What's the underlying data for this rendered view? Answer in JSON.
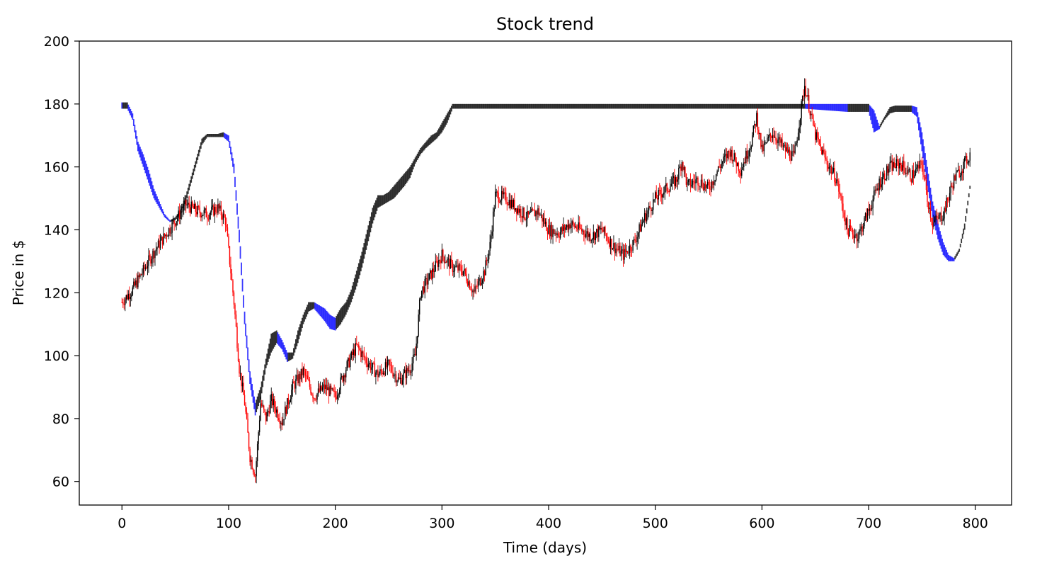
{
  "chart_data": {
    "type": "candlestick",
    "title": "Stock trend",
    "xlabel": "Time (days)",
    "ylabel": "Price in $",
    "xlim": [
      -40,
      834
    ],
    "ylim": [
      52.5,
      200
    ],
    "xticks": [
      0,
      100,
      200,
      300,
      400,
      500,
      600,
      700,
      800
    ],
    "yticks": [
      60,
      80,
      100,
      120,
      140,
      160,
      180,
      200
    ],
    "grid": false,
    "legend": "none",
    "colors": {
      "rise": "#000000",
      "fall": "#ff0000",
      "band_up": "#000000",
      "band_down": "#0000ff"
    },
    "series": [
      {
        "role": "price",
        "x": [
          0,
          10,
          20,
          30,
          40,
          50,
          60,
          70,
          80,
          90,
          97,
          105,
          110,
          115,
          120,
          125,
          130,
          135,
          140,
          150,
          160,
          170,
          180,
          190,
          200,
          210,
          220,
          230,
          240,
          250,
          260,
          270,
          275,
          280,
          290,
          300,
          310,
          320,
          330,
          340,
          345,
          350,
          360,
          370,
          380,
          390,
          400,
          410,
          420,
          430,
          440,
          450,
          460,
          470,
          480,
          490,
          500,
          510,
          520,
          525,
          530,
          540,
          550,
          560,
          570,
          580,
          590,
          595,
          600,
          610,
          620,
          630,
          640,
          645,
          650,
          660,
          670,
          680,
          685,
          690,
          700,
          710,
          720,
          730,
          740,
          750,
          755,
          760,
          770,
          780,
          790,
          795
        ],
        "y": [
          117,
          121,
          127,
          133,
          138,
          143,
          148,
          146,
          145,
          147,
          143,
          117,
          96,
          85,
          68,
          62,
          85,
          80,
          86,
          79,
          90,
          95,
          87,
          90,
          87,
          96,
          103,
          98,
          94,
          97,
          92,
          96,
          100,
          120,
          126,
          132,
          128,
          127,
          120,
          127,
          135,
          151,
          150,
          147,
          144,
          146,
          140,
          139,
          142,
          140,
          138,
          140,
          135,
          132,
          136,
          144,
          150,
          153,
          156,
          162,
          154,
          156,
          153,
          160,
          165,
          159,
          168,
          176,
          165,
          171,
          166,
          163,
          186,
          178,
          170,
          162,
          156,
          140,
          139,
          138,
          146,
          155,
          160,
          161,
          157,
          161,
          150,
          142,
          145,
          156,
          161,
          164
        ]
      },
      {
        "role": "trend-band",
        "x": [
          0,
          5,
          10,
          15,
          20,
          25,
          30,
          35,
          40,
          45,
          50,
          55,
          60,
          65,
          70,
          75,
          80,
          85,
          90,
          95,
          100,
          105,
          110,
          115,
          120,
          125,
          130,
          135,
          140,
          145,
          150,
          155,
          160,
          165,
          170,
          175,
          180,
          185,
          190,
          195,
          200,
          205,
          210,
          215,
          220,
          225,
          230,
          235,
          240,
          245,
          250,
          255,
          260,
          265,
          270,
          275,
          280,
          285,
          290,
          295,
          300,
          305,
          310,
          320,
          340,
          360,
          380,
          400,
          420,
          440,
          460,
          480,
          500,
          520,
          540,
          560,
          580,
          600,
          620,
          640,
          660,
          680,
          700,
          705,
          710,
          715,
          720,
          725,
          730,
          735,
          740,
          745,
          750,
          755,
          760,
          765,
          770,
          775,
          780,
          785,
          790,
          795
        ],
        "lower": [
          178.5,
          178.5,
          175,
          165,
          160,
          155,
          150,
          147,
          144,
          142.5,
          143,
          145.5,
          149,
          155,
          161,
          167,
          169.5,
          169.5,
          169.5,
          169.5,
          168,
          158,
          136,
          110,
          91,
          81,
          86,
          96,
          101,
          104,
          102,
          98,
          99,
          104,
          110,
          114,
          115,
          113,
          111,
          108.5,
          108,
          110,
          113,
          117,
          122,
          128,
          135,
          142,
          147,
          148,
          149,
          150,
          152,
          154,
          156.5,
          161,
          164,
          166,
          167.5,
          169,
          171,
          174,
          178.5,
          178.5,
          178.5,
          178.5,
          178.5,
          178.5,
          178.5,
          178.5,
          178.5,
          178.5,
          178.5,
          178.5,
          178.5,
          178.5,
          178.5,
          178.5,
          178.5,
          178.5,
          178,
          177.5,
          177.5,
          171,
          172,
          175,
          177,
          177.5,
          177.5,
          177.5,
          177.5,
          176,
          165,
          154,
          144,
          137,
          132,
          130,
          130,
          133,
          140,
          153
        ],
        "upper": [
          180.5,
          180.5,
          177,
          168,
          164,
          159,
          153,
          149,
          145,
          143,
          144,
          146.5,
          151,
          157,
          163,
          169,
          170.5,
          170.5,
          170.5,
          171,
          170,
          161,
          140,
          114,
          95,
          85,
          90,
          99,
          107,
          108,
          105,
          101,
          101,
          108,
          113,
          117,
          117,
          116,
          115,
          113,
          112,
          115,
          117,
          121,
          127,
          133,
          140,
          147,
          151,
          151,
          152,
          154,
          156,
          158,
          160,
          163,
          166,
          168,
          170,
          171,
          174,
          177,
          180,
          180,
          180,
          180,
          180,
          180,
          180,
          180,
          180,
          180,
          180,
          180,
          180,
          180,
          180,
          180,
          180,
          180,
          180,
          180,
          180,
          178,
          173,
          176,
          179,
          179.5,
          179.5,
          179.5,
          179.5,
          179,
          171,
          160,
          149,
          142,
          136,
          132,
          131,
          134,
          142,
          154
        ]
      }
    ]
  }
}
